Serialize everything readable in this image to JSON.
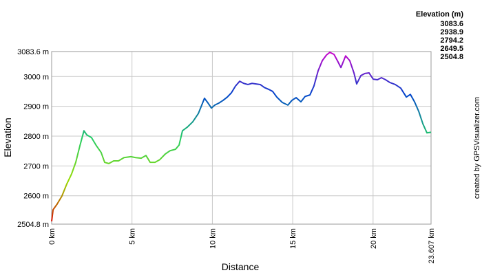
{
  "chart_data": {
    "type": "line",
    "x_label": "Distance",
    "y_label": "Elevation",
    "legend_title": "Elevation (m)",
    "color_scale": [
      {
        "value": 3083.6,
        "color": "#cc00cc"
      },
      {
        "value": 2938.9,
        "color": "#0044cc"
      },
      {
        "value": 2794.2,
        "color": "#22cc66"
      },
      {
        "value": 2649.5,
        "color": "#99dd00"
      },
      {
        "value": 2504.8,
        "color": "#dd0000"
      }
    ],
    "credit": "created by GPSVisualizer.com",
    "xlim": [
      0,
      23.607
    ],
    "xticks": [
      {
        "value": 0,
        "label": "0 km"
      },
      {
        "value": 5,
        "label": "5 km"
      },
      {
        "value": 10,
        "label": "10 km"
      },
      {
        "value": 15,
        "label": "15 km"
      },
      {
        "value": 20,
        "label": "20 km"
      },
      {
        "value": 23.607,
        "label": "23.607 km"
      }
    ],
    "ylim": [
      2504.8,
      3083.6
    ],
    "yticks": [
      {
        "value": 2504.8,
        "label": "2504.8 m"
      },
      {
        "value": 2600,
        "label": "2600 m"
      },
      {
        "value": 2700,
        "label": "2700 m"
      },
      {
        "value": 2800,
        "label": "2800 m"
      },
      {
        "value": 2900,
        "label": "2900 m"
      },
      {
        "value": 3000,
        "label": "3000 m"
      },
      {
        "value": 3083.6,
        "label": "3083.6 m"
      }
    ],
    "grid": true,
    "x": [
      0,
      0.09,
      0.34,
      0.64,
      0.94,
      1.24,
      1.5,
      1.76,
      2.01,
      2.19,
      2.48,
      2.78,
      3.08,
      3.3,
      3.56,
      3.86,
      4.16,
      4.5,
      4.93,
      5.23,
      5.57,
      5.87,
      6.13,
      6.43,
      6.73,
      7.07,
      7.37,
      7.71,
      7.93,
      8.14,
      8.44,
      8.78,
      9.13,
      9.34,
      9.51,
      9.73,
      9.94,
      10.15,
      10.41,
      10.67,
      10.93,
      11.18,
      11.44,
      11.7,
      11.95,
      12.21,
      12.47,
      12.72,
      12.98,
      13.24,
      13.5,
      13.75,
      14.01,
      14.35,
      14.7,
      14.95,
      15.21,
      15.51,
      15.77,
      16.07,
      16.32,
      16.58,
      16.84,
      17.1,
      17.31,
      17.57,
      17.78,
      18.0,
      18.29,
      18.55,
      18.81,
      18.98,
      19.24,
      19.49,
      19.75,
      20.01,
      20.27,
      20.52,
      20.78,
      21.04,
      21.38,
      21.72,
      22.07,
      22.32,
      22.58,
      22.84,
      23.1,
      23.35,
      23.607
    ],
    "values": [
      2514,
      2553,
      2572,
      2599,
      2639,
      2673,
      2712,
      2768,
      2818,
      2804,
      2795,
      2768,
      2745,
      2712,
      2708,
      2717,
      2717,
      2728,
      2731,
      2728,
      2726,
      2735,
      2712,
      2712,
      2721,
      2740,
      2751,
      2756,
      2770,
      2818,
      2830,
      2848,
      2876,
      2904,
      2927,
      2911,
      2894,
      2904,
      2911,
      2920,
      2931,
      2945,
      2968,
      2984,
      2977,
      2973,
      2977,
      2975,
      2973,
      2963,
      2957,
      2950,
      2931,
      2913,
      2904,
      2920,
      2929,
      2915,
      2933,
      2938,
      2968,
      3019,
      3053,
      3072,
      3081,
      3074,
      3053,
      3030,
      3069,
      3053,
      3012,
      2975,
      3003,
      3010,
      3012,
      2991,
      2989,
      2996,
      2989,
      2980,
      2973,
      2961,
      2931,
      2940,
      2915,
      2883,
      2841,
      2811,
      2813
    ]
  }
}
